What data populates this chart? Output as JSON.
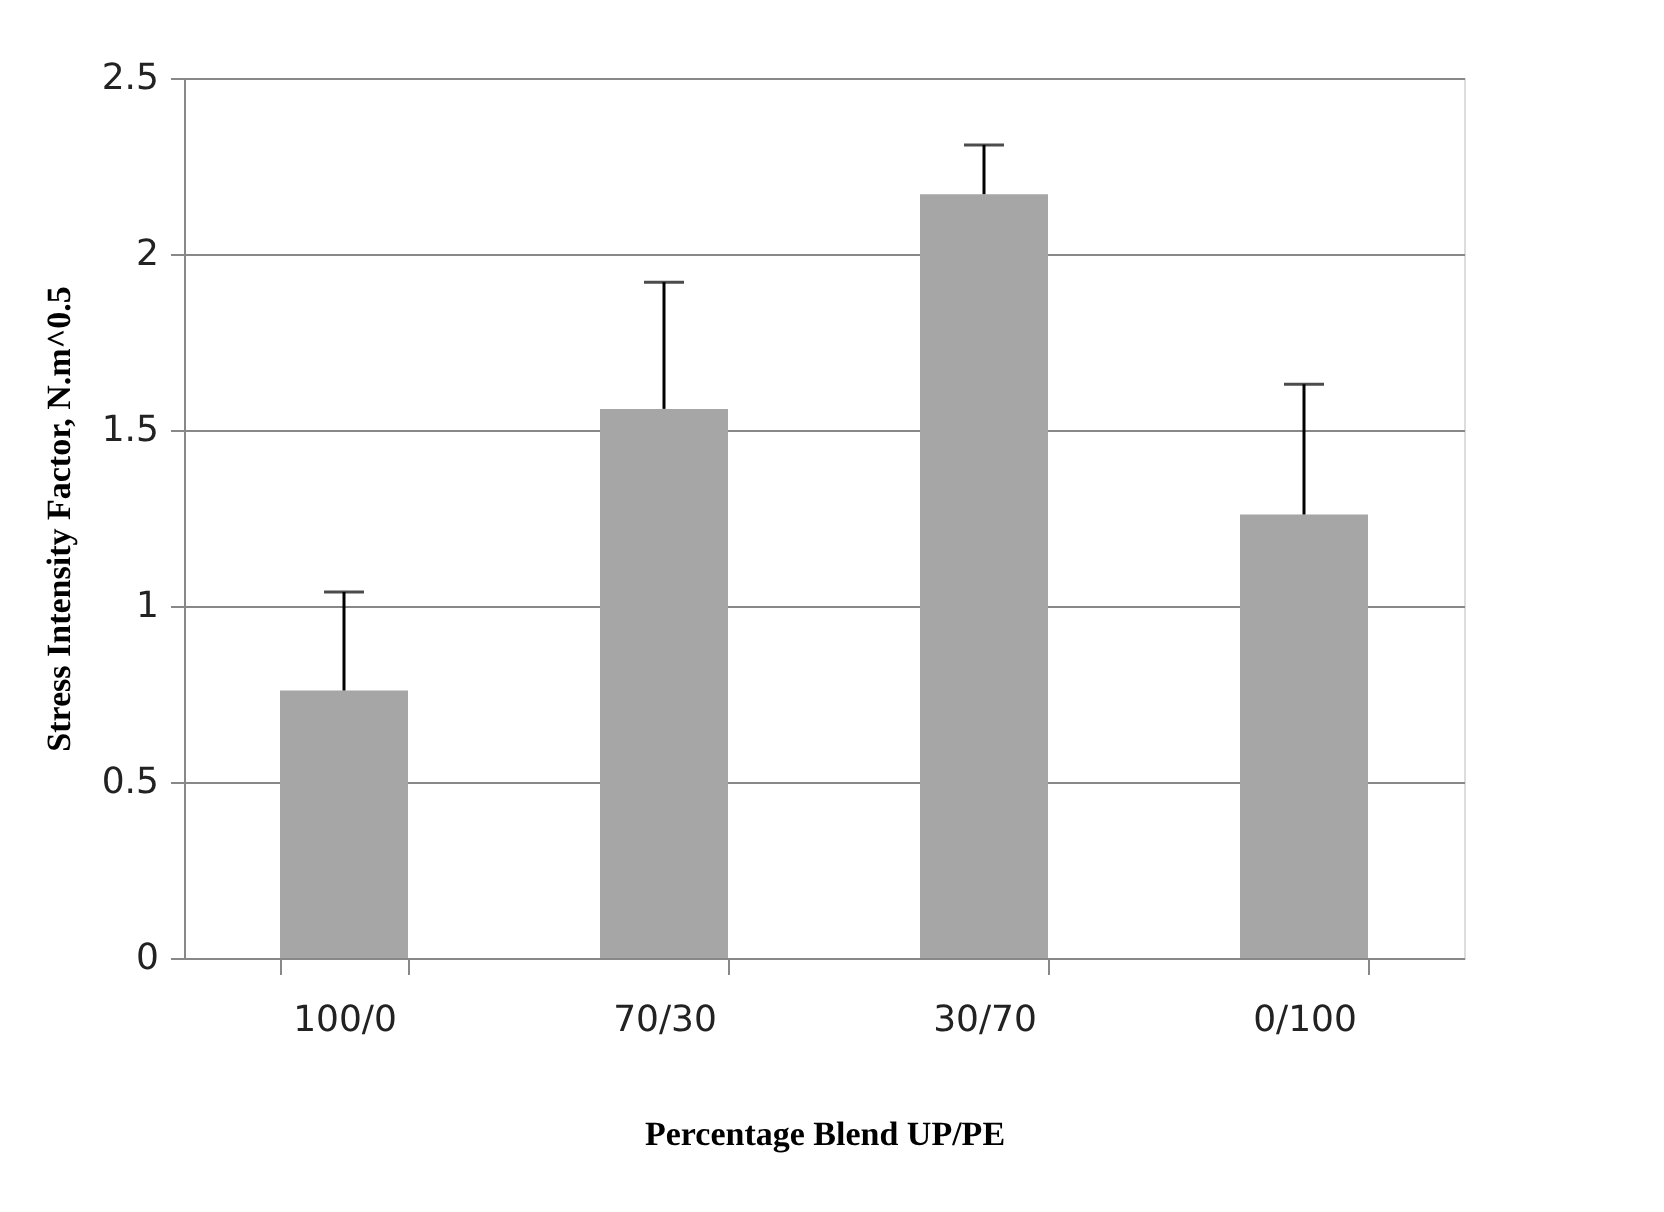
{
  "chart_data": {
    "type": "bar",
    "xlabel": "Percentage Blend  UP/PE",
    "ylabel": "Stress Intensity Factor, N.m^0.5",
    "categories": [
      "100/0",
      "70/30",
      "30/70",
      "0/100"
    ],
    "values": [
      0.76,
      1.56,
      2.17,
      1.26
    ],
    "errors": [
      [
        0.76,
        1.04
      ],
      [
        1.56,
        1.92
      ],
      [
        2.17,
        2.31
      ],
      [
        1.26,
        1.63
      ]
    ],
    "color": "#a6a6a6",
    "ylim": [
      0,
      2.5
    ],
    "yticks": [
      0,
      0.5,
      1,
      1.5,
      2,
      2.5
    ],
    "grid": "y"
  }
}
